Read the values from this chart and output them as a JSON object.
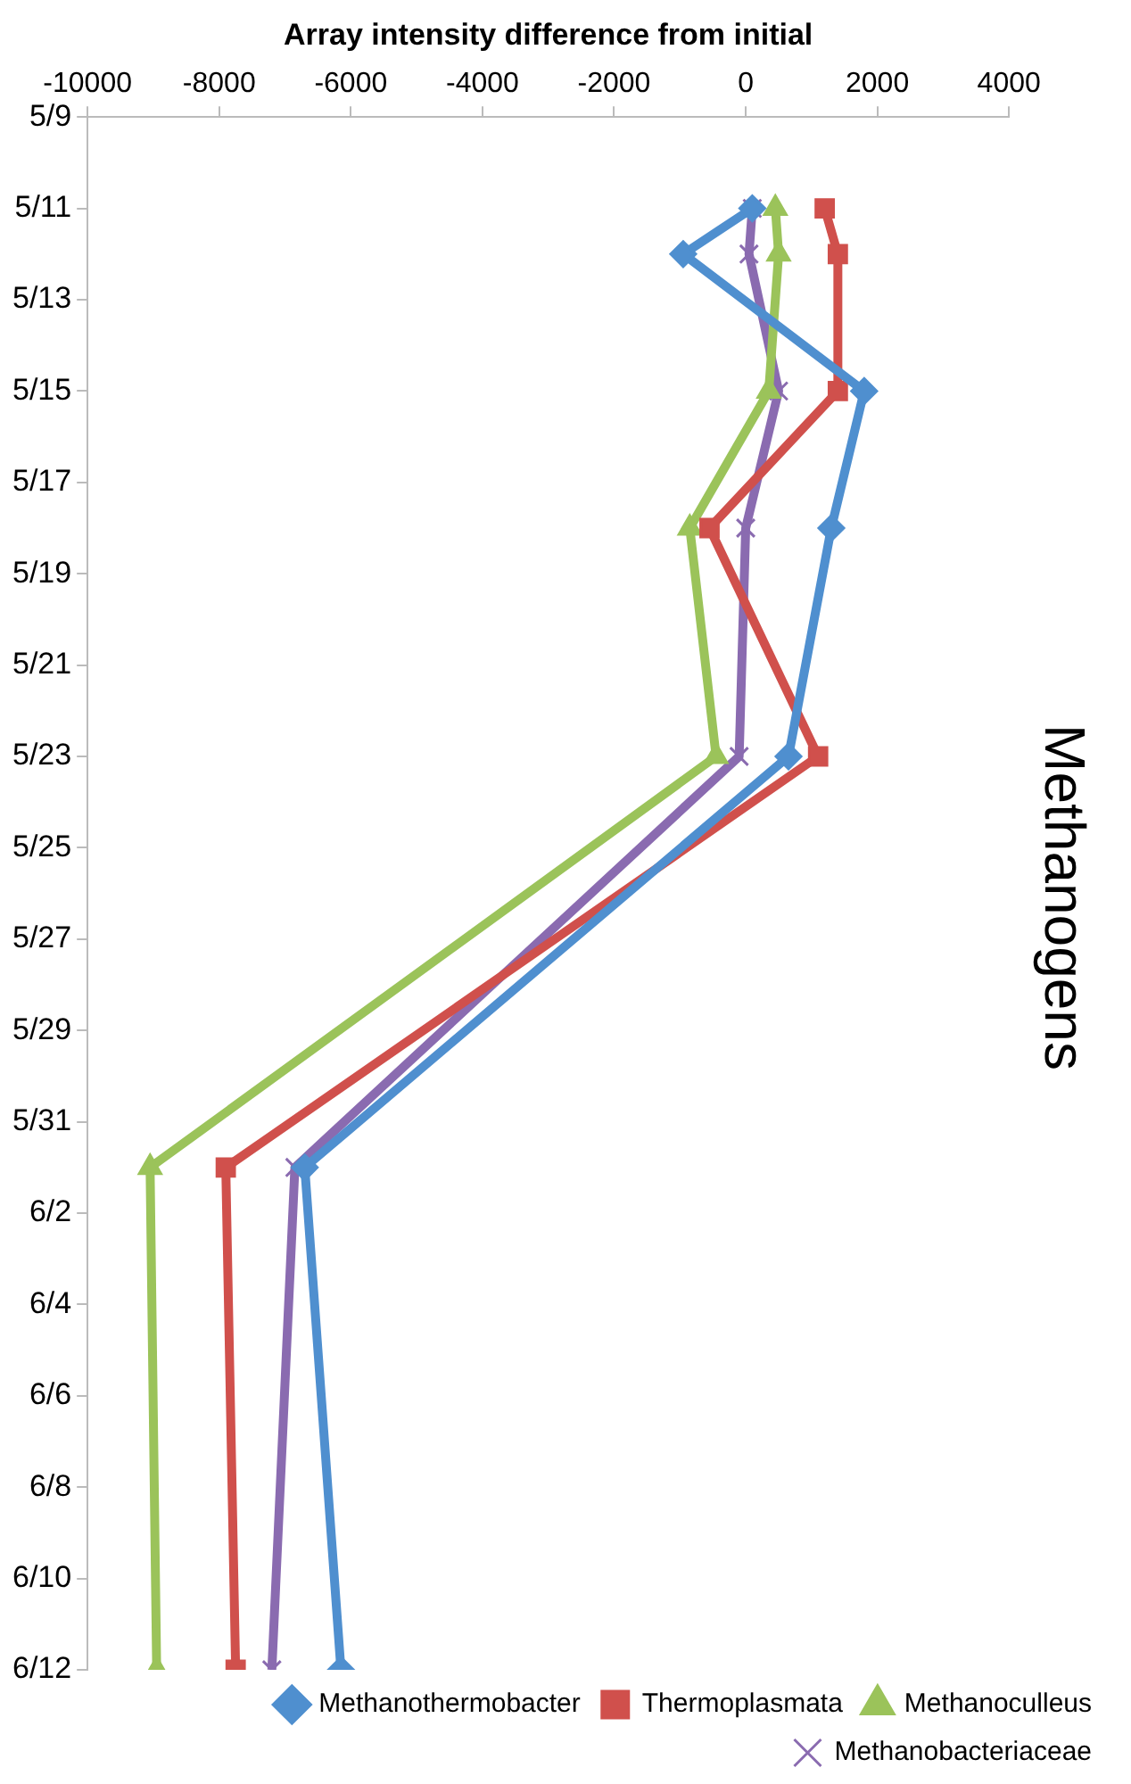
{
  "chart_data": {
    "type": "line",
    "title": "Methanogens",
    "xlabel": "Array intensity difference from initial",
    "orientation": "horizontal",
    "xlim": [
      -10000,
      4000
    ],
    "xticks": [
      -10000,
      -8000,
      -6000,
      -4000,
      -2000,
      0,
      2000,
      4000
    ],
    "ylim": [
      "--06-12",
      "--05-09"
    ],
    "yticks": [
      {
        "value": "--05-09",
        "label": "5/9"
      },
      {
        "value": "--05-11",
        "label": "5/11"
      },
      {
        "value": "--05-13",
        "label": "5/13"
      },
      {
        "value": "--05-15",
        "label": "5/15"
      },
      {
        "value": "--05-17",
        "label": "5/17"
      },
      {
        "value": "--05-19",
        "label": "5/19"
      },
      {
        "value": "--05-21",
        "label": "5/21"
      },
      {
        "value": "--05-23",
        "label": "5/23"
      },
      {
        "value": "--05-25",
        "label": "5/25"
      },
      {
        "value": "--05-27",
        "label": "5/27"
      },
      {
        "value": "--05-29",
        "label": "5/29"
      },
      {
        "value": "--05-31",
        "label": "5/31"
      },
      {
        "value": "--06-02",
        "label": "6/2"
      },
      {
        "value": "--06-04",
        "label": "6/4"
      },
      {
        "value": "--06-06",
        "label": "6/6"
      },
      {
        "value": "--06-08",
        "label": "6/8"
      },
      {
        "value": "--06-10",
        "label": "6/10"
      },
      {
        "value": "--06-12",
        "label": "6/12"
      }
    ],
    "x": [
      "--05-11",
      "--05-12",
      "--05-15",
      "--05-18",
      "--05-23",
      "--06-01",
      "--06-12"
    ],
    "grid": false,
    "legend": "bottom right",
    "line_style": "solid",
    "series": [
      {
        "name": "Methanothermobacter",
        "color": "#4f8fcf",
        "marker": "diamond",
        "values": [
          100,
          -950,
          1800,
          1300,
          650,
          -6700,
          -6150
        ]
      },
      {
        "name": "Thermoplasmata",
        "color": "#d0504c",
        "marker": "square",
        "values": [
          1200,
          1400,
          1400,
          -550,
          1100,
          -7900,
          -7750
        ]
      },
      {
        "name": "Methanoculleus",
        "color": "#9bc35a",
        "marker": "triangle",
        "values": [
          450,
          500,
          350,
          -850,
          -450,
          -9050,
          -8950
        ]
      },
      {
        "name": "Methanobacteriaceae",
        "color": "#8a6bb0",
        "marker": "cross",
        "values": [
          100,
          50,
          500,
          0,
          -100,
          -6850,
          -7200
        ]
      }
    ]
  }
}
